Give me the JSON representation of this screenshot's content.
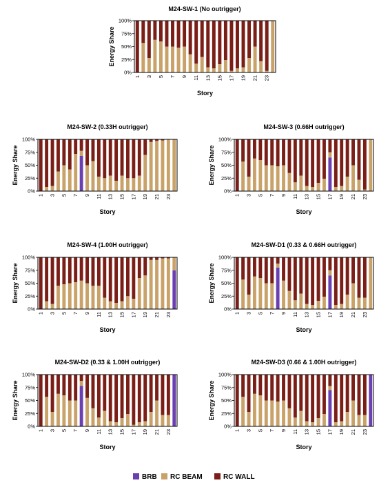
{
  "colors": {
    "brb": "#6a3fb0",
    "beam": "#c9a26a",
    "wall": "#7a1f17"
  },
  "legend": [
    {
      "key": "brb",
      "label": "BRB"
    },
    {
      "key": "beam",
      "label": "RC BEAM"
    },
    {
      "key": "wall",
      "label": "RC WALL"
    }
  ],
  "chart_data": [
    {
      "type": "bar",
      "stacked": true,
      "title": "M24-SW-1 (No outrigger)",
      "xlabel": "Story",
      "ylabel": "Energy Share",
      "categories": [
        1,
        2,
        3,
        4,
        5,
        6,
        7,
        8,
        9,
        10,
        11,
        12,
        13,
        14,
        15,
        16,
        17,
        18,
        19,
        20,
        21,
        22,
        23,
        24
      ],
      "x_tick_labels": [
        "1",
        "3",
        "5",
        "7",
        "9",
        "11",
        "13",
        "15",
        "17",
        "19",
        "21",
        "23"
      ],
      "y_tick_labels": [
        "0%",
        "25%",
        "50%",
        "75%",
        "100%"
      ],
      "ylim": [
        0,
        100
      ],
      "series": [
        {
          "key": "brb",
          "name": "BRB",
          "values": [
            0,
            0,
            0,
            0,
            0,
            0,
            0,
            0,
            0,
            0,
            0,
            0,
            0,
            0,
            0,
            0,
            0,
            0,
            0,
            0,
            0,
            0,
            0,
            0
          ]
        },
        {
          "key": "beam",
          "name": "RC BEAM",
          "values": [
            0,
            57,
            28,
            63,
            60,
            50,
            50,
            48,
            50,
            35,
            17,
            30,
            10,
            8,
            16,
            24,
            3,
            8,
            10,
            28,
            50,
            22,
            3,
            100
          ]
        },
        {
          "key": "wall",
          "name": "RC WALL",
          "values": [
            100,
            43,
            72,
            37,
            40,
            50,
            50,
            52,
            50,
            65,
            83,
            70,
            90,
            92,
            84,
            76,
            97,
            92,
            90,
            72,
            50,
            78,
            97,
            0
          ]
        }
      ]
    },
    {
      "type": "bar",
      "stacked": true,
      "title": "M24-SW-2 (0.33H outrigger)",
      "xlabel": "Story",
      "ylabel": "Energy Share",
      "categories": [
        1,
        2,
        3,
        4,
        5,
        6,
        7,
        8,
        9,
        10,
        11,
        12,
        13,
        14,
        15,
        16,
        17,
        18,
        19,
        20,
        21,
        22,
        23,
        24
      ],
      "x_tick_labels": [
        "1",
        "3",
        "5",
        "7",
        "9",
        "11",
        "13",
        "15",
        "17",
        "19",
        "21",
        "23"
      ],
      "y_tick_labels": [
        "0%",
        "25%",
        "50%",
        "75%",
        "100%"
      ],
      "ylim": [
        0,
        100
      ],
      "series": [
        {
          "key": "brb",
          "name": "BRB",
          "values": [
            0,
            0,
            0,
            0,
            0,
            0,
            0,
            68,
            0,
            0,
            0,
            0,
            0,
            0,
            0,
            0,
            0,
            0,
            0,
            0,
            0,
            0,
            0,
            0
          ]
        },
        {
          "key": "beam",
          "name": "RC BEAM",
          "values": [
            0,
            8,
            10,
            38,
            50,
            42,
            72,
            10,
            50,
            58,
            28,
            25,
            30,
            20,
            30,
            25,
            25,
            30,
            70,
            95,
            97,
            98,
            100,
            100
          ]
        },
        {
          "key": "wall",
          "name": "RC WALL",
          "values": [
            100,
            92,
            90,
            62,
            50,
            58,
            28,
            22,
            50,
            42,
            72,
            75,
            70,
            80,
            70,
            75,
            75,
            70,
            30,
            5,
            3,
            2,
            0,
            0
          ]
        }
      ]
    },
    {
      "type": "bar",
      "stacked": true,
      "title": "M24-SW-3 (0.66H outrigger)",
      "xlabel": "Story",
      "ylabel": "Energy Share",
      "categories": [
        1,
        2,
        3,
        4,
        5,
        6,
        7,
        8,
        9,
        10,
        11,
        12,
        13,
        14,
        15,
        16,
        17,
        18,
        19,
        20,
        21,
        22,
        23,
        24
      ],
      "x_tick_labels": [
        "1",
        "3",
        "5",
        "7",
        "9",
        "11",
        "13",
        "15",
        "17",
        "19",
        "21",
        "23"
      ],
      "y_tick_labels": [
        "0%",
        "25%",
        "50%",
        "75%",
        "100%"
      ],
      "ylim": [
        0,
        100
      ],
      "series": [
        {
          "key": "brb",
          "name": "BRB",
          "values": [
            0,
            0,
            0,
            0,
            0,
            0,
            0,
            0,
            0,
            0,
            0,
            0,
            0,
            0,
            0,
            0,
            65,
            0,
            0,
            0,
            0,
            0,
            0,
            0
          ]
        },
        {
          "key": "beam",
          "name": "RC BEAM",
          "values": [
            0,
            57,
            28,
            63,
            60,
            50,
            50,
            48,
            50,
            35,
            17,
            30,
            10,
            8,
            16,
            24,
            10,
            8,
            10,
            28,
            50,
            22,
            3,
            100
          ]
        },
        {
          "key": "wall",
          "name": "RC WALL",
          "values": [
            100,
            43,
            72,
            37,
            40,
            50,
            50,
            52,
            50,
            65,
            83,
            70,
            90,
            92,
            84,
            76,
            25,
            92,
            90,
            72,
            50,
            78,
            97,
            0
          ]
        }
      ]
    },
    {
      "type": "bar",
      "stacked": true,
      "title": "M24-SW-4 (1.00H outrigger)",
      "xlabel": "Story",
      "ylabel": "Energy Share",
      "categories": [
        1,
        2,
        3,
        4,
        5,
        6,
        7,
        8,
        9,
        10,
        11,
        12,
        13,
        14,
        15,
        16,
        17,
        18,
        19,
        20,
        21,
        22,
        23,
        24
      ],
      "x_tick_labels": [
        "1",
        "3",
        "5",
        "7",
        "9",
        "11",
        "13",
        "15",
        "17",
        "19",
        "21",
        "23"
      ],
      "y_tick_labels": [
        "0%",
        "25%",
        "50%",
        "75%",
        "100%"
      ],
      "ylim": [
        0,
        100
      ],
      "series": [
        {
          "key": "brb",
          "name": "BRB",
          "values": [
            0,
            0,
            0,
            0,
            0,
            0,
            0,
            0,
            0,
            0,
            0,
            0,
            0,
            0,
            0,
            0,
            0,
            0,
            0,
            0,
            0,
            0,
            0,
            75
          ]
        },
        {
          "key": "beam",
          "name": "RC BEAM",
          "values": [
            0,
            15,
            10,
            45,
            48,
            50,
            52,
            55,
            50,
            45,
            45,
            22,
            15,
            12,
            15,
            25,
            20,
            60,
            65,
            95,
            95,
            98,
            98,
            25
          ]
        },
        {
          "key": "wall",
          "name": "RC WALL",
          "values": [
            100,
            85,
            90,
            55,
            52,
            50,
            48,
            45,
            50,
            55,
            55,
            78,
            85,
            88,
            85,
            75,
            80,
            40,
            35,
            5,
            5,
            2,
            2,
            0
          ]
        }
      ]
    },
    {
      "type": "bar",
      "stacked": true,
      "title": "M24-SW-D1 (0.33 & 0.66H outrigger)",
      "xlabel": "Story",
      "ylabel": "Energy Share",
      "categories": [
        1,
        2,
        3,
        4,
        5,
        6,
        7,
        8,
        9,
        10,
        11,
        12,
        13,
        14,
        15,
        16,
        17,
        18,
        19,
        20,
        21,
        22,
        23,
        24
      ],
      "x_tick_labels": [
        "1",
        "3",
        "5",
        "7",
        "9",
        "11",
        "13",
        "15",
        "17",
        "19",
        "21",
        "23"
      ],
      "y_tick_labels": [
        "0%",
        "25%",
        "50%",
        "75%",
        "100%"
      ],
      "ylim": [
        0,
        100
      ],
      "series": [
        {
          "key": "brb",
          "name": "BRB",
          "values": [
            0,
            0,
            0,
            0,
            0,
            0,
            0,
            80,
            0,
            0,
            0,
            0,
            0,
            0,
            0,
            0,
            65,
            0,
            0,
            0,
            0,
            0,
            0,
            0
          ]
        },
        {
          "key": "beam",
          "name": "RC BEAM",
          "values": [
            0,
            57,
            28,
            63,
            60,
            50,
            50,
            8,
            55,
            35,
            17,
            30,
            10,
            8,
            16,
            24,
            10,
            8,
            10,
            28,
            50,
            22,
            22,
            100
          ]
        },
        {
          "key": "wall",
          "name": "RC WALL",
          "values": [
            100,
            43,
            72,
            37,
            40,
            50,
            50,
            12,
            45,
            65,
            83,
            70,
            90,
            92,
            84,
            76,
            25,
            92,
            90,
            72,
            50,
            78,
            78,
            0
          ]
        }
      ]
    },
    {
      "type": "bar",
      "stacked": true,
      "title": "M24-SW-D2 (0.33 & 1.00H outrigger)",
      "xlabel": "Story",
      "ylabel": "Energy Share",
      "categories": [
        1,
        2,
        3,
        4,
        5,
        6,
        7,
        8,
        9,
        10,
        11,
        12,
        13,
        14,
        15,
        16,
        17,
        18,
        19,
        20,
        21,
        22,
        23,
        24
      ],
      "x_tick_labels": [
        "1",
        "3",
        "5",
        "7",
        "9",
        "11",
        "13",
        "15",
        "17",
        "19",
        "21",
        "23"
      ],
      "y_tick_labels": [
        "0%",
        "25%",
        "50%",
        "75%",
        "100%"
      ],
      "ylim": [
        0,
        100
      ],
      "series": [
        {
          "key": "brb",
          "name": "BRB",
          "values": [
            0,
            0,
            0,
            0,
            0,
            0,
            0,
            78,
            0,
            0,
            0,
            0,
            0,
            0,
            0,
            0,
            0,
            0,
            0,
            0,
            0,
            0,
            0,
            100
          ]
        },
        {
          "key": "beam",
          "name": "RC BEAM",
          "values": [
            0,
            57,
            28,
            63,
            60,
            50,
            50,
            10,
            55,
            35,
            17,
            30,
            10,
            8,
            16,
            24,
            3,
            8,
            10,
            28,
            50,
            22,
            22,
            0
          ]
        },
        {
          "key": "wall",
          "name": "RC WALL",
          "values": [
            100,
            43,
            72,
            37,
            40,
            50,
            50,
            12,
            45,
            65,
            83,
            70,
            90,
            92,
            84,
            76,
            97,
            92,
            90,
            72,
            50,
            78,
            78,
            0
          ]
        }
      ]
    },
    {
      "type": "bar",
      "stacked": true,
      "title": "M24-SW-D3 (0.66 & 1.00H outrigger)",
      "xlabel": "Story",
      "ylabel": "Energy Share",
      "categories": [
        1,
        2,
        3,
        4,
        5,
        6,
        7,
        8,
        9,
        10,
        11,
        12,
        13,
        14,
        15,
        16,
        17,
        18,
        19,
        20,
        21,
        22,
        23,
        24
      ],
      "x_tick_labels": [
        "1",
        "3",
        "5",
        "7",
        "9",
        "11",
        "13",
        "15",
        "17",
        "19",
        "21",
        "23"
      ],
      "y_tick_labels": [
        "0%",
        "25%",
        "50%",
        "75%",
        "100%"
      ],
      "ylim": [
        0,
        100
      ],
      "series": [
        {
          "key": "brb",
          "name": "BRB",
          "values": [
            0,
            0,
            0,
            0,
            0,
            0,
            0,
            0,
            0,
            0,
            0,
            0,
            0,
            0,
            0,
            0,
            70,
            0,
            0,
            0,
            0,
            0,
            0,
            100
          ]
        },
        {
          "key": "beam",
          "name": "RC BEAM",
          "values": [
            0,
            57,
            28,
            63,
            60,
            50,
            50,
            48,
            50,
            35,
            17,
            30,
            10,
            8,
            16,
            24,
            8,
            8,
            10,
            28,
            50,
            22,
            22,
            0
          ]
        },
        {
          "key": "wall",
          "name": "RC WALL",
          "values": [
            100,
            43,
            72,
            37,
            40,
            50,
            50,
            52,
            50,
            65,
            83,
            70,
            90,
            92,
            84,
            76,
            22,
            92,
            90,
            72,
            50,
            78,
            78,
            0
          ]
        }
      ]
    }
  ]
}
